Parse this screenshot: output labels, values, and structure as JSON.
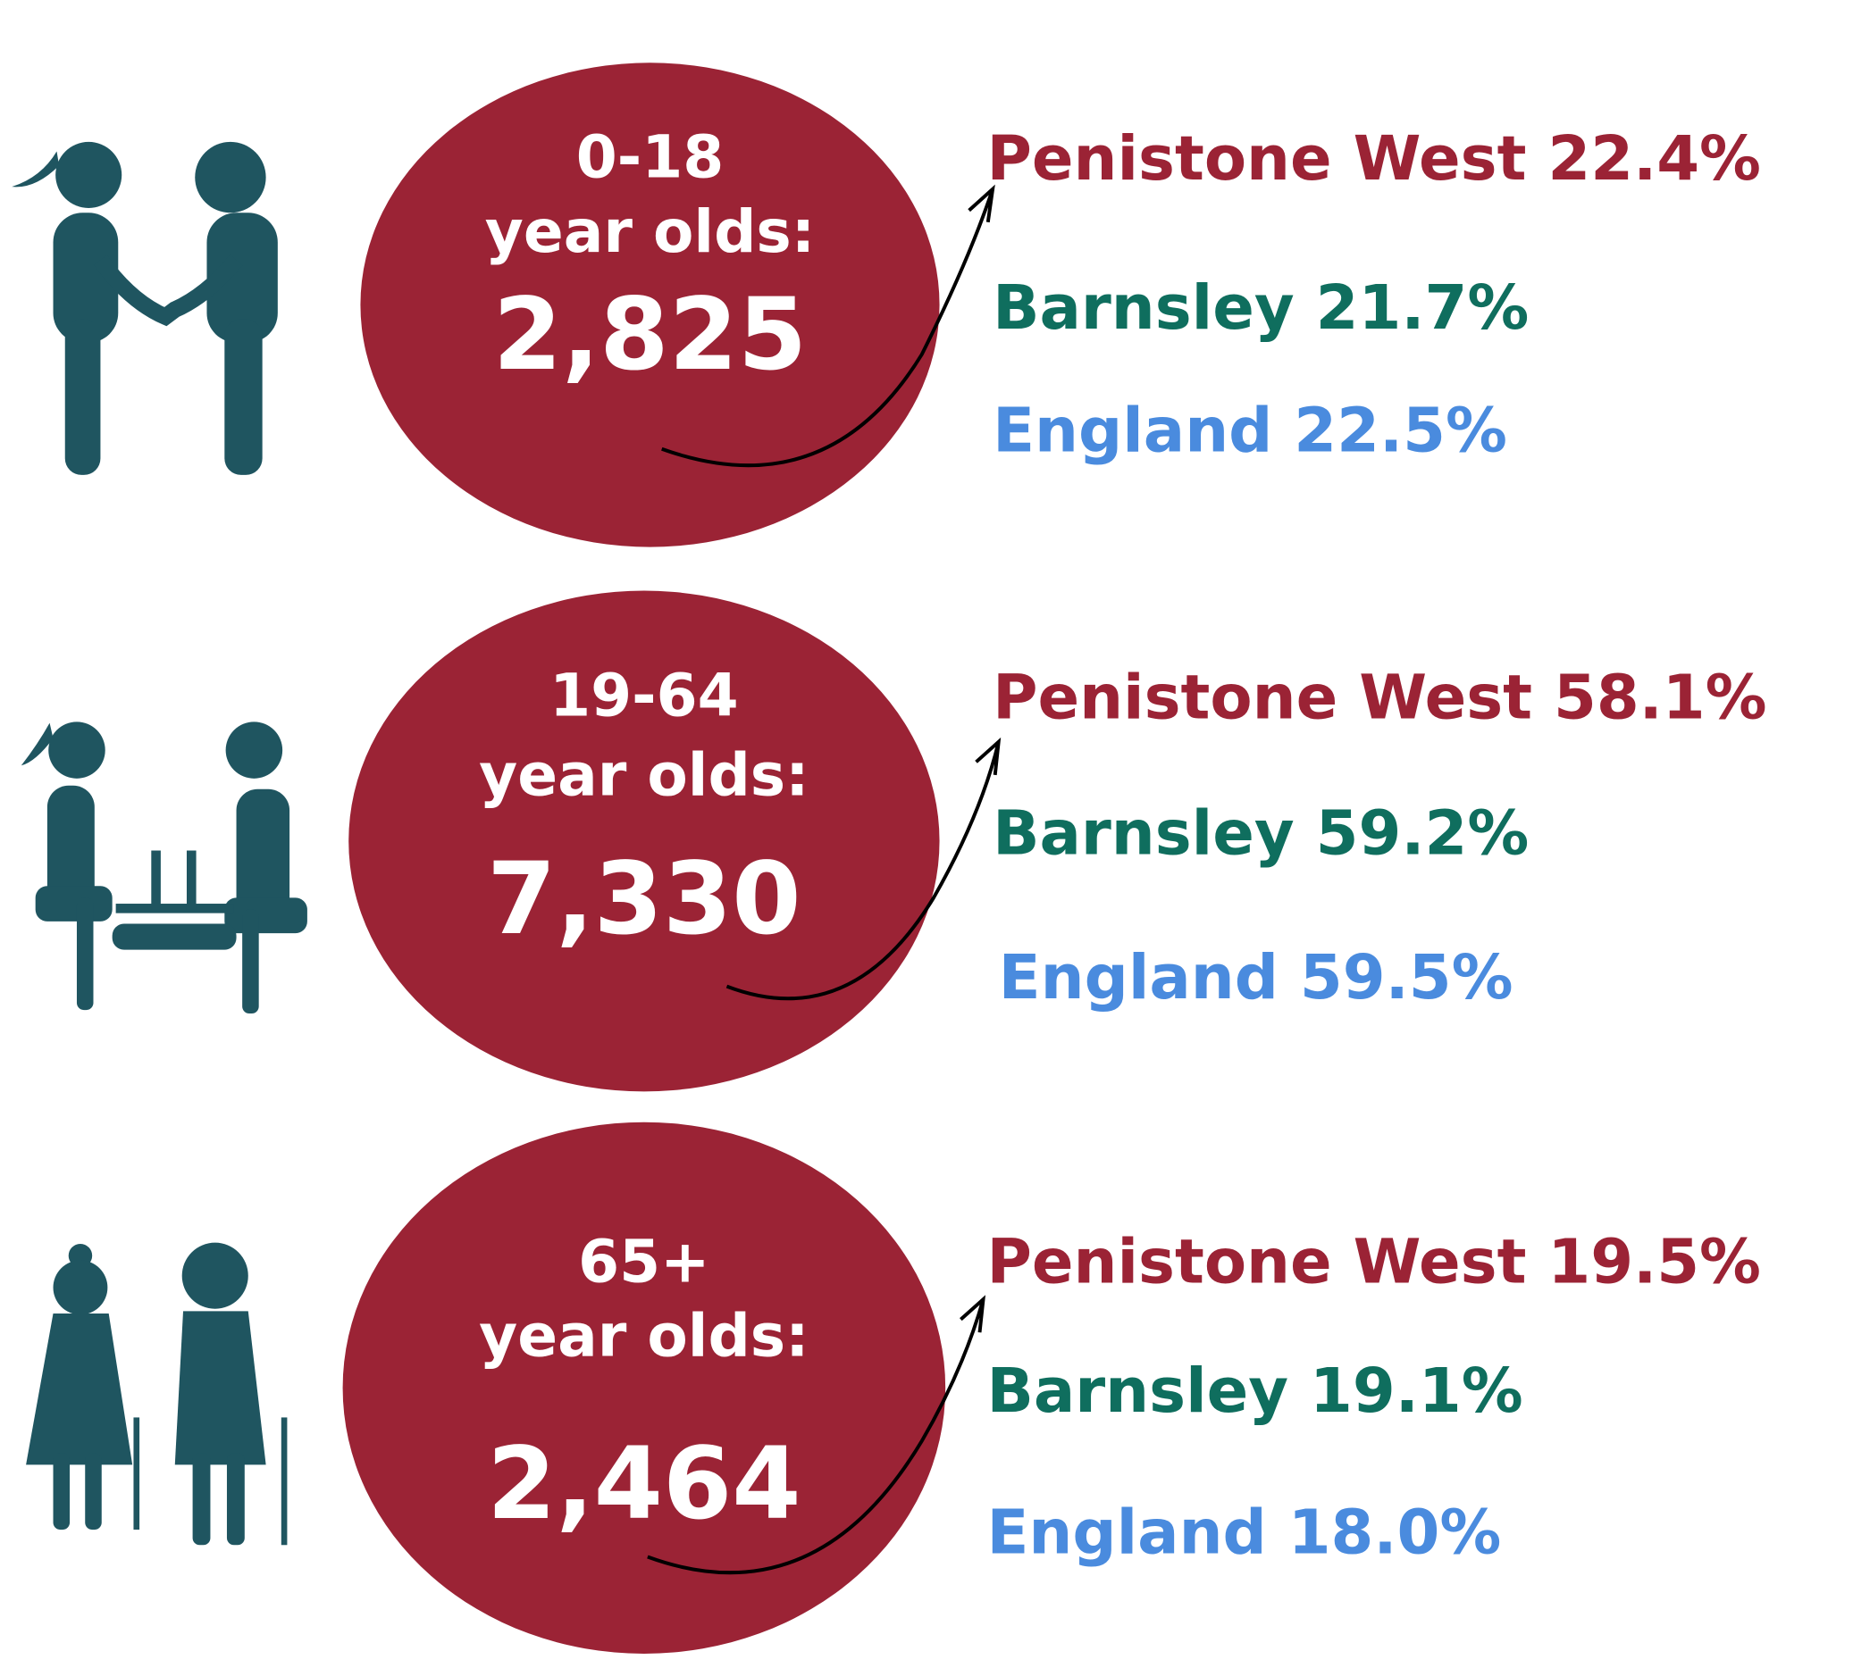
{
  "groups": [
    {
      "label": "0-18",
      "sublabel": "year olds:",
      "count": "2,825",
      "stats": [
        "Penistone West 22.4%",
        "Barnsley 21.7%",
        "England 22.5%"
      ]
    },
    {
      "label": "19-64",
      "sublabel": "year olds:",
      "count": "7,330",
      "stats": [
        "Penistone West 58.1%",
        "Barnsley 59.2%",
        "England 59.5%"
      ]
    },
    {
      "label": "65+",
      "sublabel": "year olds:",
      "count": "2,464",
      "stats": [
        "Penistone West 19.5%",
        "Barnsley 19.1%",
        "England 18.0%"
      ]
    }
  ]
}
